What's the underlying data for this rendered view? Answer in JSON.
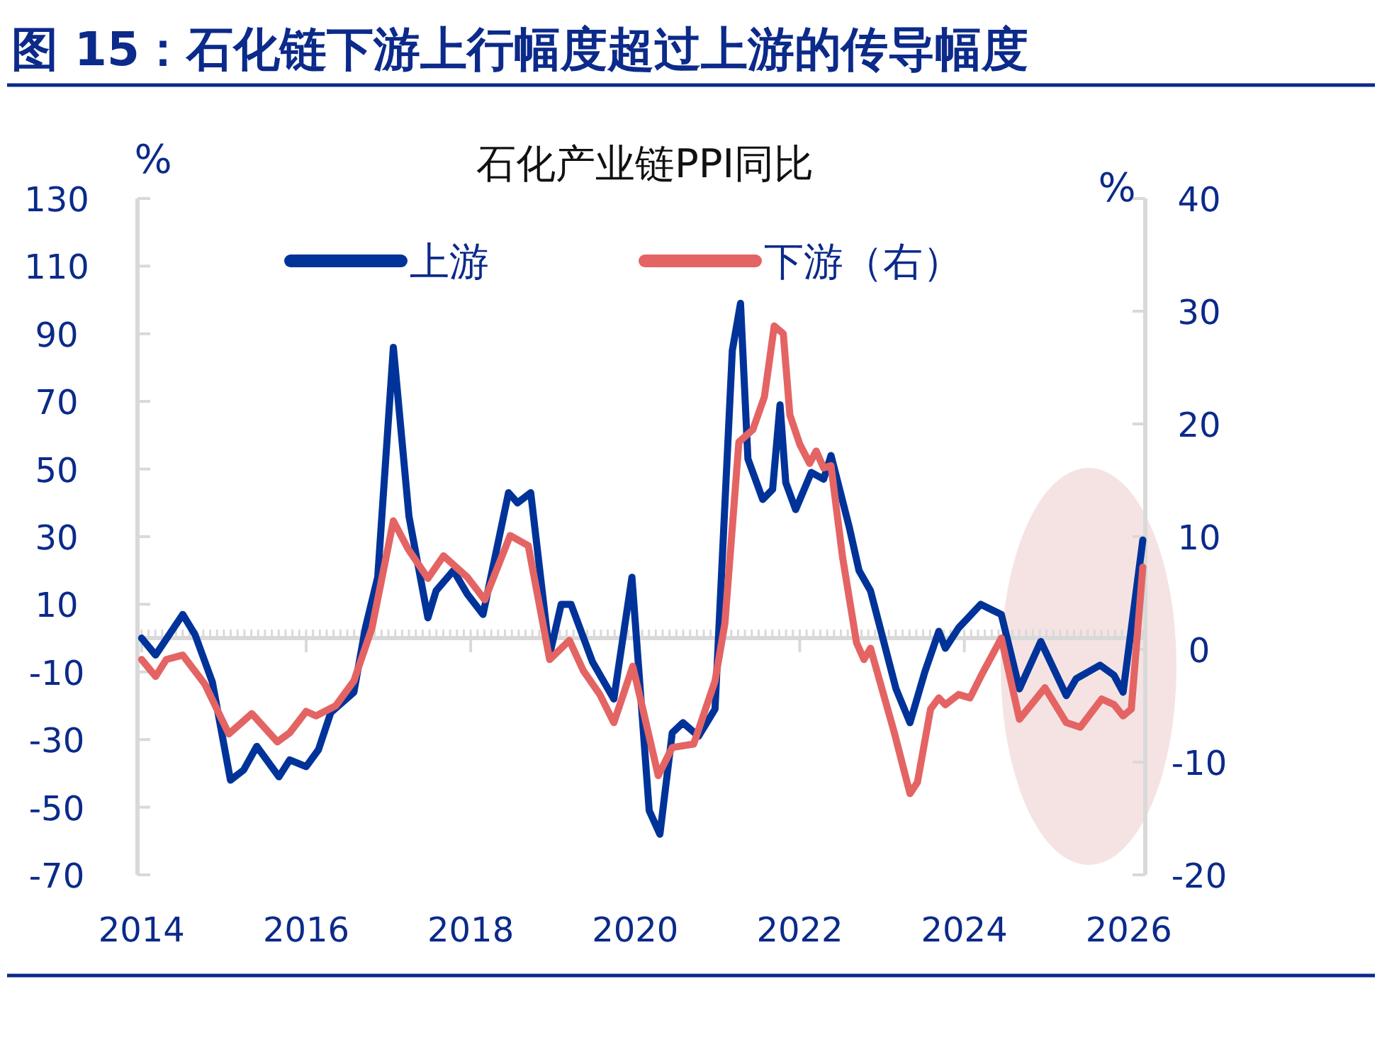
{
  "chart_data": {
    "type": "line",
    "title": "图 15：石化链下游上行幅度超过上游的传导幅度",
    "subtitle": "石化产业链PPI同比",
    "ylabel": "%",
    "y2label": "%",
    "xlim": [
      2013.95,
      2026.2
    ],
    "xticks": [
      2014,
      2016,
      2018,
      2020,
      2022,
      2024,
      2026
    ],
    "ylim": [
      -70,
      130
    ],
    "yticks": [
      -70,
      -50,
      -30,
      -10,
      10,
      30,
      50,
      70,
      90,
      110,
      130
    ],
    "y2lim": [
      -20,
      40
    ],
    "y2ticks": [
      -20,
      -10,
      0,
      10,
      20,
      30,
      40
    ],
    "legend": "top",
    "grid": false,
    "marker": "none",
    "line_style": "solid",
    "series": [
      {
        "name": "上游",
        "color": "#003399",
        "x": [
          2014.0,
          2014.17,
          2014.5,
          2014.65,
          2014.86,
          2015.08,
          2015.24,
          2015.4,
          2015.67,
          2015.8,
          2016.0,
          2016.15,
          2016.3,
          2016.58,
          2016.72,
          2016.87,
          2017.06,
          2017.25,
          2017.48,
          2017.58,
          2017.79,
          2017.96,
          2018.15,
          2018.46,
          2018.57,
          2018.73,
          2018.96,
          2019.1,
          2019.22,
          2019.48,
          2019.74,
          2019.96,
          2020.17,
          2020.3,
          2020.45,
          2020.58,
          2020.77,
          2020.97,
          2021.18,
          2021.28,
          2021.37,
          2021.55,
          2021.67,
          2021.76,
          2021.83,
          2021.95,
          2022.14,
          2022.29,
          2022.38,
          2022.6,
          2022.72,
          2022.86,
          2023.17,
          2023.34,
          2023.52,
          2023.69,
          2023.77,
          2023.93,
          2024.2,
          2024.45,
          2024.67,
          2024.93,
          2025.24,
          2025.36,
          2025.65,
          2025.82,
          2025.93,
          2026.17
        ],
        "values": [
          0,
          -5,
          7,
          1,
          -13,
          -42,
          -39,
          -32,
          -41,
          -36,
          -38,
          -33,
          -22,
          -16,
          3,
          18,
          86,
          36,
          6,
          14,
          20,
          13,
          7,
          43,
          40,
          43,
          -5,
          10,
          10,
          -7,
          -18,
          18,
          -51,
          -58,
          -28,
          -25,
          -29,
          -21,
          85,
          99,
          53,
          41,
          44,
          69,
          46,
          38,
          49,
          47,
          54,
          33,
          20,
          14,
          -15,
          -25,
          -10,
          2,
          -3,
          3,
          10,
          7,
          -15,
          -1,
          -17,
          -12,
          -8,
          -11,
          -16,
          29
        ]
      },
      {
        "name": "下游（右）",
        "color": "#e46464",
        "axis": "y2",
        "x": [
          2014.0,
          2014.17,
          2014.3,
          2014.5,
          2014.77,
          2015.06,
          2015.34,
          2015.65,
          2015.8,
          2016.0,
          2016.12,
          2016.36,
          2016.58,
          2016.8,
          2017.06,
          2017.24,
          2017.48,
          2017.67,
          2017.96,
          2018.17,
          2018.48,
          2018.7,
          2018.96,
          2019.2,
          2019.37,
          2019.57,
          2019.74,
          2019.97,
          2020.08,
          2020.28,
          2020.45,
          2020.71,
          2020.97,
          2021.09,
          2021.26,
          2021.43,
          2021.57,
          2021.69,
          2021.8,
          2021.88,
          2022.0,
          2022.12,
          2022.2,
          2022.29,
          2022.38,
          2022.52,
          2022.69,
          2022.78,
          2022.86,
          2023.15,
          2023.34,
          2023.43,
          2023.59,
          2023.69,
          2023.77,
          2023.93,
          2024.07,
          2024.2,
          2024.45,
          2024.67,
          2024.98,
          2025.24,
          2025.41,
          2025.67,
          2025.82,
          2025.93,
          2026.03,
          2026.17
        ],
        "values": [
          -0.9,
          -2.4,
          -0.9,
          -0.5,
          -3.1,
          -7.5,
          -5.7,
          -8.2,
          -7.4,
          -5.5,
          -5.9,
          -5,
          -2.8,
          1.9,
          11.4,
          8.9,
          6.3,
          8.3,
          6.4,
          4.4,
          10.1,
          9.2,
          -0.9,
          0.8,
          -1.9,
          -4,
          -6.5,
          -1.5,
          -4.9,
          -11.2,
          -8.7,
          -8.4,
          -2.8,
          2.3,
          18.4,
          19.5,
          22.4,
          28.7,
          28,
          20.8,
          18.2,
          16.5,
          17.6,
          16.1,
          16.3,
          8.2,
          0.6,
          -0.9,
          0.1,
          -7.4,
          -12.8,
          -11.8,
          -5.3,
          -4.3,
          -4.9,
          -4,
          -4.3,
          -2.4,
          1,
          -6.2,
          -3.4,
          -6.5,
          -6.9,
          -4.4,
          -4.9,
          -5.9,
          -5.3,
          7.3
        ]
      }
    ]
  }
}
